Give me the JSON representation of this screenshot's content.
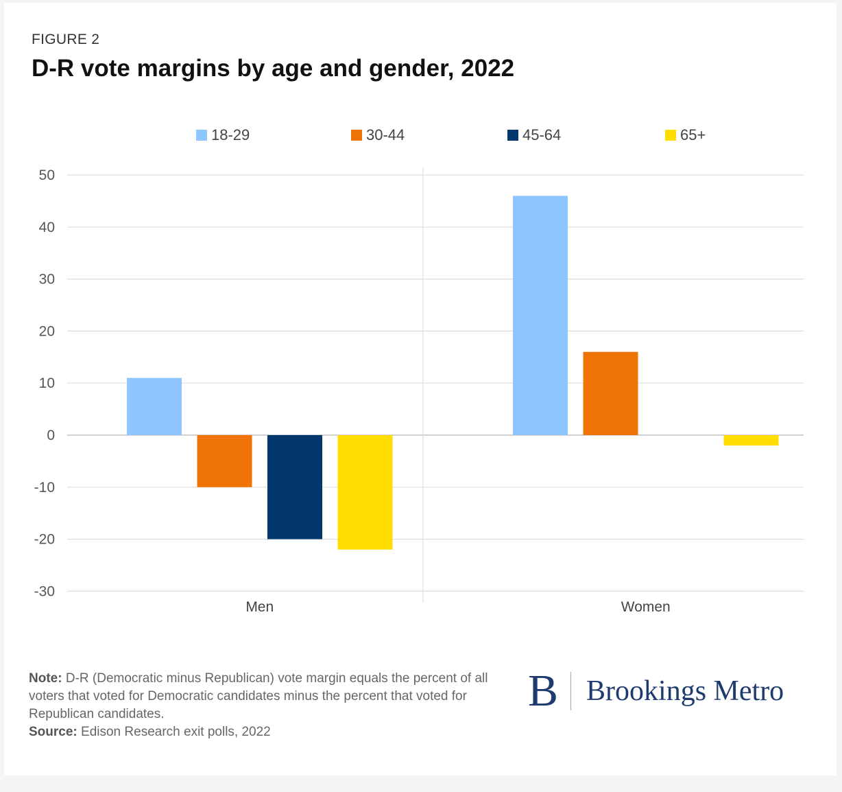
{
  "header": {
    "eyebrow": "FIGURE 2",
    "title": "D-R vote margins by age and gender, 2022"
  },
  "chart_data": {
    "type": "bar",
    "categories": [
      "Men",
      "Women"
    ],
    "series": [
      {
        "name": "18-29",
        "color": "#8ec6ff",
        "values": [
          11,
          46
        ]
      },
      {
        "name": "30-44",
        "color": "#f07306",
        "values": [
          -10,
          16
        ]
      },
      {
        "name": "45-64",
        "color": "#03386f",
        "values": [
          -20,
          0
        ]
      },
      {
        "name": "65+",
        "color": "#ffdd00",
        "values": [
          -22,
          -2
        ]
      }
    ],
    "yticks": [
      50,
      40,
      30,
      20,
      10,
      0,
      -10,
      -20,
      -30
    ],
    "ylim": [
      -30,
      50
    ],
    "legend_position": "top",
    "grid": true
  },
  "footer": {
    "note_label": "Note:",
    "note_text": " D-R (Democratic minus Republican) vote margin equals the percent of all voters that voted for Democratic candidates minus the percent that voted for Republican candidates.",
    "source_label": "Source:",
    "source_text": " Edison Research exit polls, 2022"
  },
  "logo": {
    "mark": "B",
    "text": "Brookings Metro"
  }
}
